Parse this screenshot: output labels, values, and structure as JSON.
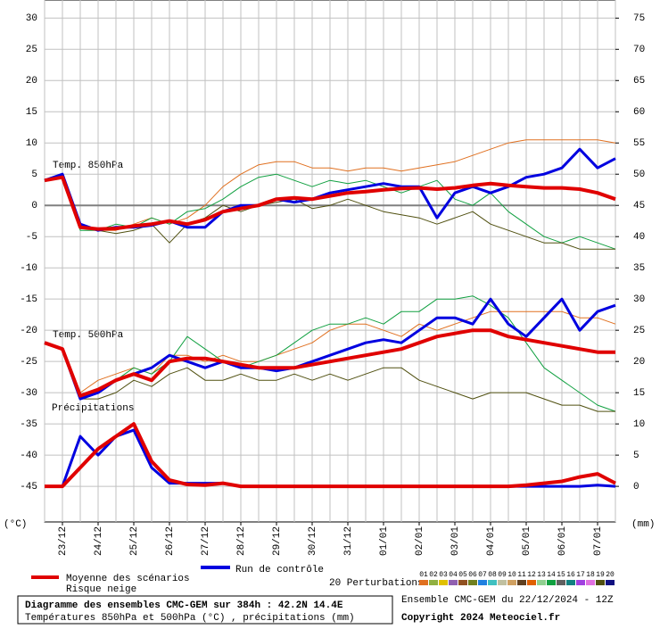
{
  "chart_data": {
    "type": "line",
    "title": "Diagramme des ensembles CMC-GEM sur 384h : 42.2N 14.4E",
    "subtitle": "Températures 850hPa et 500hPa (°C) , précipitations (mm)",
    "run_info": "Ensemble CMC-GEM du 22/12/2024 - 12Z",
    "copyright": "Copyright 2024 Meteociel.fr",
    "y_label": "(°C)",
    "y2_label": "(mm)",
    "annotations": [
      "Temp. 850hPa",
      "Temp. 500hPa",
      "Précipitations"
    ],
    "snow_label": "Risque neige",
    "perturbations": {
      "label": "20 Perturbations",
      "codes": [
        "01",
        "02",
        "03",
        "04",
        "05",
        "06",
        "07",
        "08",
        "09",
        "10",
        "11",
        "12",
        "13",
        "14",
        "15",
        "16",
        "17",
        "18",
        "19",
        "20"
      ],
      "colors": [
        "#e07020",
        "#90b040",
        "#e0c000",
        "#9060b0",
        "#905020",
        "#708020",
        "#2080e0",
        "#40c0c0",
        "#c0c0a0",
        "#d0a060",
        "#604020",
        "#e06000",
        "#90d090",
        "#10a040",
        "#606060",
        "#108080",
        "#a040e0",
        "#e070e0",
        "#505010",
        "#101080"
      ]
    },
    "categories": [
      null,
      "23/12",
      null,
      "24/12",
      null,
      "25/12",
      null,
      "26/12",
      null,
      "27/12",
      null,
      "28/12",
      null,
      "29/12",
      null,
      "30/12",
      null,
      "31/12",
      null,
      "01/01",
      null,
      "02/01",
      null,
      "03/01",
      null,
      "04/01",
      null,
      "05/01",
      null,
      "06/01",
      null,
      "07/01",
      null
    ],
    "ylim": [
      -50.7,
      32.9
    ],
    "yticks": [
      -45,
      -40,
      -35,
      -30,
      -25,
      -20,
      -15,
      -10,
      -5,
      0,
      5,
      10,
      15,
      20,
      25,
      30
    ],
    "y2lim": [
      -5.7,
      77.9
    ],
    "y2ticks": [
      0,
      5,
      10,
      15,
      20,
      25,
      30,
      35,
      40,
      45,
      50,
      55,
      60,
      65,
      70,
      75
    ],
    "grid": true,
    "series": [
      {
        "name": "01",
        "color": "#e07020",
        "values": [
          4,
          5,
          -3,
          -4,
          -4,
          -3,
          -2,
          -3,
          -2,
          0,
          3,
          5,
          6.5,
          7,
          7,
          6,
          6,
          5.5,
          6,
          6,
          5.5,
          6,
          6.5,
          7,
          8,
          9,
          10,
          10.5,
          10.5,
          10.5,
          10.5,
          10.5,
          10
        ]
      },
      {
        "name": "14",
        "color": "#10a040",
        "values": [
          4,
          5,
          -4,
          -4,
          -3,
          -3.5,
          -2,
          -3,
          -1,
          -0.5,
          1,
          3,
          4.5,
          5,
          4,
          3,
          4,
          3.5,
          4,
          3,
          2,
          3,
          4,
          1,
          0,
          2,
          -1,
          -3,
          -5,
          -6,
          -5,
          -6,
          -7
        ]
      },
      {
        "name": "19",
        "color": "#505010",
        "values": [
          4,
          4.5,
          -3,
          -4,
          -4.5,
          -4,
          -3,
          -6,
          -3,
          -2,
          0,
          -1,
          0,
          0.5,
          1,
          -0.5,
          0,
          1,
          0,
          -1,
          -1.5,
          -2,
          -3,
          -2,
          -1,
          -3,
          -4,
          -5,
          -6,
          -6,
          -7,
          -7,
          -7
        ]
      },
      {
        "name": "01",
        "color": "#e07020",
        "values": [
          -22,
          -23,
          -30,
          -28,
          -27,
          -26,
          -27,
          -24,
          -24,
          -25,
          -24,
          -25,
          -25,
          -24,
          -23,
          -22,
          -20,
          -19,
          -19,
          -20,
          -21,
          -19,
          -20,
          -19,
          -18,
          -17,
          -17,
          -17,
          -17,
          -17,
          -18,
          -18,
          -19
        ]
      },
      {
        "name": "14",
        "color": "#10a040",
        "values": [
          -22,
          -23,
          -31,
          -30,
          -28,
          -26,
          -27,
          -25,
          -21,
          -23,
          -25,
          -26,
          -25,
          -24,
          -22,
          -20,
          -19,
          -19,
          -18,
          -19,
          -17,
          -17,
          -15,
          -15,
          -14.5,
          -16,
          -18,
          -22,
          -26,
          -28,
          -30,
          -32,
          -33
        ]
      },
      {
        "name": "19",
        "color": "#505010",
        "values": [
          -22,
          -23,
          -31,
          -31,
          -30,
          -28,
          -29,
          -27,
          -26,
          -28,
          -28,
          -27,
          -28,
          -28,
          -27,
          -28,
          -27,
          -28,
          -27,
          -26,
          -26,
          -28,
          -29,
          -30,
          -31,
          -30,
          -30,
          -30,
          -31,
          -32,
          -32,
          -33,
          -33
        ]
      },
      {
        "name": "Run de contrôle",
        "color": "#0000e0",
        "width": 3,
        "values": [
          4,
          5,
          -3,
          -4,
          -3.5,
          -3.5,
          -3.2,
          -2.5,
          -3.5,
          -3.5,
          -1,
          0,
          0,
          1,
          0.5,
          1,
          2,
          2.5,
          3,
          3.5,
          3,
          3,
          -2,
          2,
          3,
          2,
          3,
          4.5,
          5,
          6,
          9,
          6,
          7.5
        ]
      },
      {
        "name": "Run de contrôle",
        "color": "#0000e0",
        "width": 3,
        "values": [
          -22,
          -23,
          -31,
          -30,
          -28,
          -27,
          -26,
          -24,
          -25,
          -26,
          -25,
          -26,
          -26,
          -26.5,
          -26,
          -25,
          -24,
          -23,
          -22,
          -21.5,
          -22,
          -20,
          -18,
          -18,
          -19,
          -15,
          -19,
          -21,
          -18,
          -15,
          -20,
          -17,
          -16
        ]
      },
      {
        "name": "Run de contrôle",
        "color": "#0000e0",
        "width": 3,
        "axis": "y2",
        "values": [
          0,
          0,
          8,
          5,
          8,
          9,
          3,
          0.5,
          0.5,
          0.5,
          0.5,
          0,
          0,
          0,
          0,
          0,
          0,
          0,
          0,
          0,
          0,
          0,
          0,
          0,
          0,
          0,
          0,
          0,
          0,
          0,
          0,
          0.2,
          0
        ]
      },
      {
        "name": "Moyenne des scénarios",
        "color": "#e00000",
        "width": 4,
        "values": [
          4,
          4.5,
          -3.5,
          -3.8,
          -3.7,
          -3.3,
          -3,
          -2.5,
          -3,
          -2.3,
          -1,
          -0.5,
          0,
          1,
          1.2,
          1,
          1.5,
          2,
          2.2,
          2.5,
          2.7,
          2.8,
          2.6,
          2.8,
          3.2,
          3.5,
          3.2,
          3,
          2.8,
          2.8,
          2.6,
          2,
          1
        ]
      },
      {
        "name": "Moyenne des scénarios",
        "color": "#e00000",
        "width": 4,
        "values": [
          -22,
          -23,
          -30.5,
          -29.5,
          -28,
          -27,
          -28,
          -25,
          -24.5,
          -24.5,
          -25,
          -25.5,
          -26,
          -26,
          -26,
          -25.5,
          -25,
          -24.5,
          -24,
          -23.5,
          -23,
          -22,
          -21,
          -20.5,
          -20,
          -20,
          -21,
          -21.5,
          -22,
          -22.5,
          -23,
          -23.5,
          -23.5
        ]
      },
      {
        "name": "Moyenne des scénarios",
        "color": "#e00000",
        "width": 4,
        "axis": "y2",
        "values": [
          0,
          0,
          3,
          6,
          8,
          10,
          4,
          1,
          0.3,
          0.2,
          0.5,
          0,
          0,
          0,
          0,
          0,
          0,
          0,
          0,
          0,
          0,
          0,
          0,
          0,
          0,
          0,
          0,
          0.2,
          0.5,
          0.8,
          1.5,
          2,
          0.5
        ]
      }
    ]
  }
}
